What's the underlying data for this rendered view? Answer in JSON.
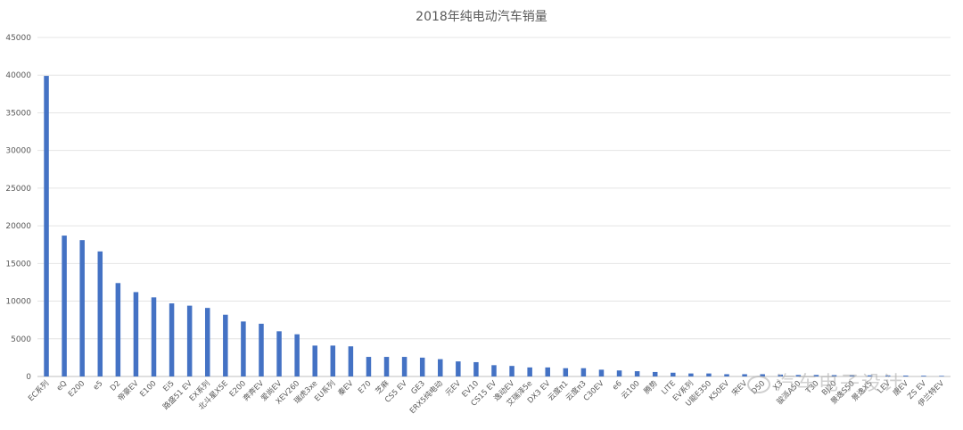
{
  "chart_data": {
    "type": "bar",
    "title": "2018年纯电动汽车销量",
    "xlabel": "",
    "ylabel": "",
    "ylim": [
      0,
      45000
    ],
    "yticks": [
      0,
      5000,
      10000,
      15000,
      20000,
      25000,
      30000,
      35000,
      40000,
      45000
    ],
    "grid": true,
    "legend": "none",
    "bar_color": "#4472C4",
    "categories": [
      "EC系列",
      "eQ",
      "E200",
      "e5",
      "D2",
      "帝豪EV",
      "E100",
      "Ei5",
      "路盛51 EV",
      "EX系列",
      "北斗星X5E",
      "E200",
      "奔奔EV",
      "爱尚EV",
      "XEV260",
      "瑞虎3xe",
      "EU系列",
      "秦EV",
      "E70",
      "芝麻",
      "CS5 EV",
      "GE3",
      "ERX5纯电动",
      "元EV",
      "EV10",
      "CS15 EV",
      "逸动EV",
      "艾瑞泽5e",
      "DX3 EV",
      "云度π1",
      "云度π3",
      "C30EV",
      "e6",
      "云100",
      "腾势",
      "LITE",
      "EV系列",
      "U能E350",
      "K50EV",
      "宋EV",
      "D50",
      "X3",
      "骏派A50",
      "T30",
      "BJ20",
      "景逸S50",
      "景逸X5",
      "LEV",
      "唐EV",
      "ZS EV",
      "伊兰特EV"
    ],
    "values": [
      39900,
      18700,
      18100,
      16600,
      12400,
      11200,
      10500,
      9700,
      9400,
      9100,
      8200,
      7300,
      7000,
      6000,
      5600,
      4100,
      4100,
      4000,
      2600,
      2600,
      2600,
      2500,
      2300,
      2000,
      1900,
      1500,
      1400,
      1200,
      1200,
      1100,
      1100,
      900,
      800,
      700,
      600,
      500,
      400,
      400,
      300,
      300,
      300,
      250,
      200,
      200,
      180,
      160,
      150,
      140,
      120,
      100,
      80
    ]
  },
  "watermark": {
    "text": "汽车电子设计"
  }
}
